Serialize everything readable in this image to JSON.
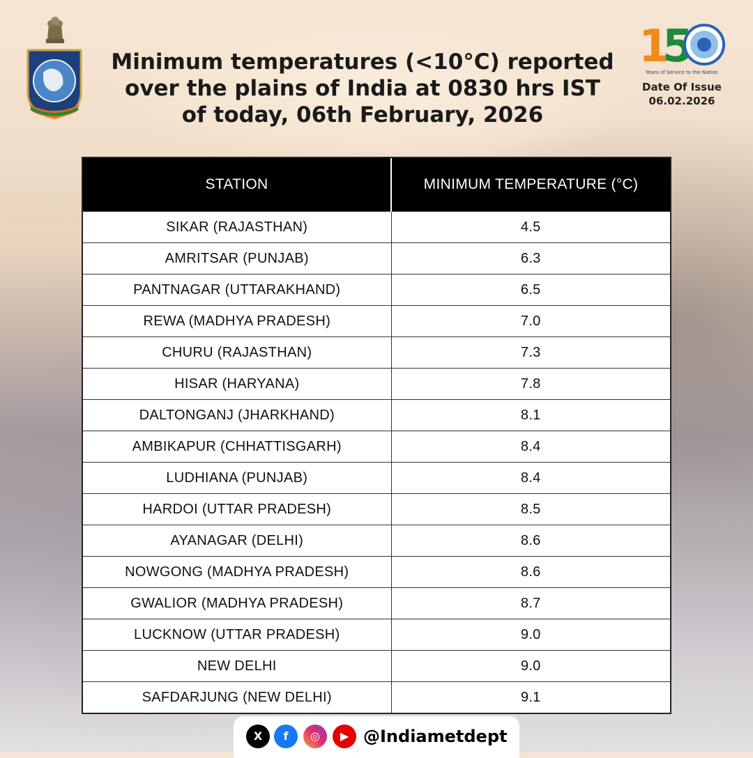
{
  "header": {
    "title_lines": [
      "Minimum temperatures (<10°C) reported",
      "over the plains of India at 0830 hrs IST",
      "of today, 06th February, 2026"
    ],
    "issue_label": "Date Of Issue",
    "issue_date": "06.02.2026",
    "logo_150": {
      "text": "150",
      "caption": "Years of Service to the Nation"
    },
    "accent_colors": {
      "orange": "#f08a1c",
      "green": "#1e8a3c",
      "blue": "#2b62b8"
    }
  },
  "table": {
    "headers": [
      "STATION",
      "MINIMUM TEMPERATURE (°C)"
    ],
    "rows": [
      [
        "SIKAR (RAJASTHAN)",
        "4.5"
      ],
      [
        "AMRITSAR (PUNJAB)",
        "6.3"
      ],
      [
        "PANTNAGAR (UTTARAKHAND)",
        "6.5"
      ],
      [
        "REWA (MADHYA PRADESH)",
        "7.0"
      ],
      [
        "CHURU (RAJASTHAN)",
        "7.3"
      ],
      [
        "HISAR (HARYANA)",
        "7.8"
      ],
      [
        "DALTONGANJ (JHARKHAND)",
        "8.1"
      ],
      [
        "AMBIKAPUR (CHHATTISGARH)",
        "8.4"
      ],
      [
        "LUDHIANA (PUNJAB)",
        "8.4"
      ],
      [
        "HARDOI (UTTAR PRADESH)",
        "8.5"
      ],
      [
        "AYANAGAR (DELHI)",
        "8.6"
      ],
      [
        "NOWGONG (MADHYA PRADESH)",
        "8.6"
      ],
      [
        "GWALIOR (MADHYA PRADESH)",
        "8.7"
      ],
      [
        "LUCKNOW (UTTAR PRADESH)",
        "9.0"
      ],
      [
        "NEW DELHI",
        "9.0"
      ],
      [
        "SAFDARJUNG (NEW DELHI)",
        "9.1"
      ]
    ]
  },
  "social": {
    "icons": [
      "x-icon",
      "facebook-icon",
      "instagram-icon",
      "youtube-icon"
    ],
    "handle": "@Indiametdept"
  }
}
